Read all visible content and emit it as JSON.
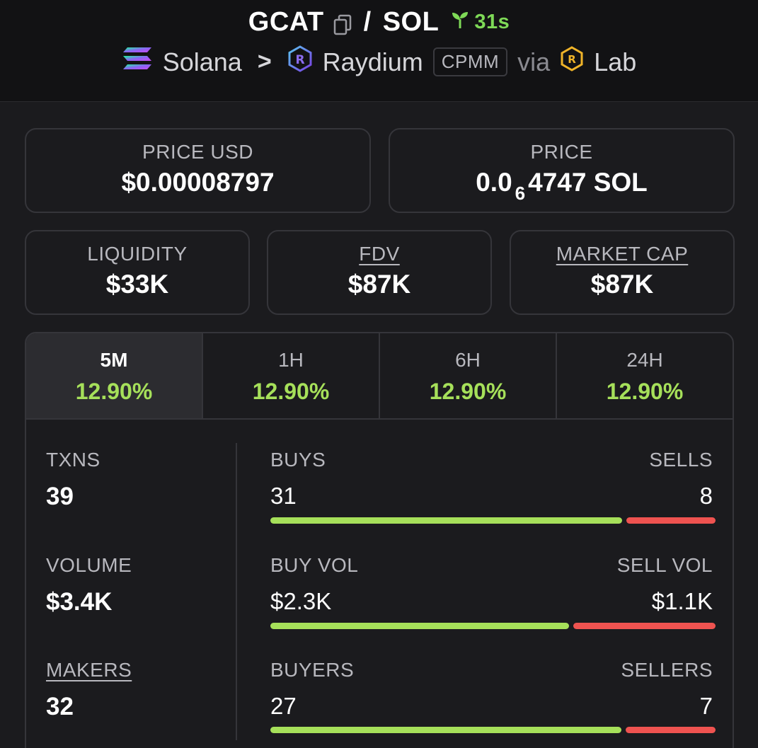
{
  "header": {
    "token": "GCAT",
    "separator": "/",
    "quote": "SOL",
    "age": "31s",
    "chain": "Solana",
    "dex": "Raydium",
    "pool_type": "CPMM",
    "via": "via",
    "launchpad": "Lab"
  },
  "cards": {
    "price_usd": {
      "label": "PRICE USD",
      "value": "$0.00008797"
    },
    "price": {
      "label": "PRICE",
      "value_prefix": "0.0",
      "value_sub": "6",
      "value_suffix": "4747 SOL"
    },
    "liquidity": {
      "label": "LIQUIDITY",
      "value": "$33K"
    },
    "fdv": {
      "label": "FDV",
      "value": "$87K"
    },
    "market_cap": {
      "label": "MARKET CAP",
      "value": "$87K"
    }
  },
  "periods": [
    {
      "label": "5M",
      "value": "12.90%"
    },
    {
      "label": "1H",
      "value": "12.90%"
    },
    {
      "label": "6H",
      "value": "12.90%"
    },
    {
      "label": "24H",
      "value": "12.90%"
    }
  ],
  "stats": {
    "txns": {
      "label": "TXNS",
      "value": "39"
    },
    "volume": {
      "label": "VOLUME",
      "value": "$3.4K"
    },
    "makers": {
      "label": "MAKERS",
      "value": "32"
    },
    "buys": {
      "label": "BUYS",
      "value": "31",
      "fraction": 0.795
    },
    "sells": {
      "label": "SELLS",
      "value": "8"
    },
    "buy_vol": {
      "label": "BUY VOL",
      "value": "$2.3K",
      "fraction": 0.676
    },
    "sell_vol": {
      "label": "SELL VOL",
      "value": "$1.1K"
    },
    "buyers": {
      "label": "BUYERS",
      "value": "27",
      "fraction": 0.794
    },
    "sellers": {
      "label": "SELLERS",
      "value": "7"
    }
  },
  "colors": {
    "green": "#a6e05a",
    "red": "#ef5350",
    "age_green": "#7ed957"
  },
  "icons": {
    "copy": "copy-icon",
    "seedling": "seedling-icon",
    "solana": "solana-icon",
    "raydium": "raydium-icon",
    "lab": "lab-icon",
    "chevron": "chevron-right-icon"
  }
}
